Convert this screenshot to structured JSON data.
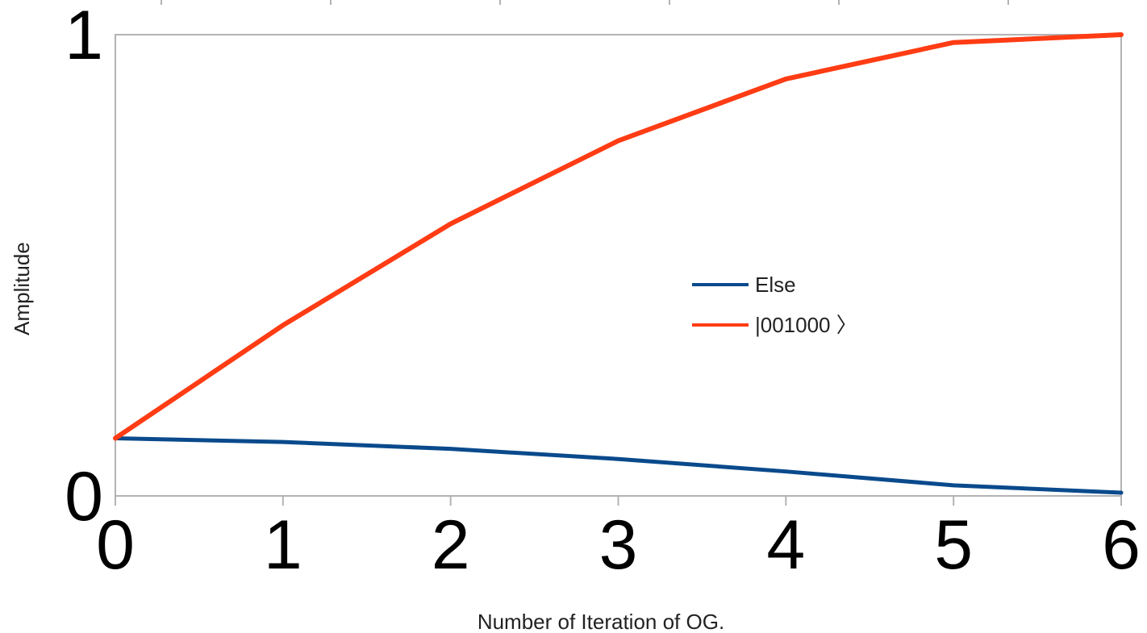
{
  "chart_data": {
    "type": "line",
    "x": [
      0,
      1,
      2,
      3,
      4,
      5,
      6
    ],
    "series": [
      {
        "name": "Else",
        "color": "#0a4a8c",
        "values": [
          0.125,
          0.117,
          0.102,
          0.08,
          0.053,
          0.023,
          0.007
        ]
      },
      {
        "name": "|001000 〉",
        "color": "#ff3c14",
        "values": [
          0.125,
          0.37,
          0.59,
          0.77,
          0.904,
          0.983,
          1.0
        ]
      }
    ],
    "xlabel": "Number of Iteration of OG.",
    "ylabel": "Amplitude",
    "x_ticks": [
      "0",
      "1",
      "2",
      "3",
      "4",
      "5",
      "6"
    ],
    "y_ticks": [
      "0",
      "1"
    ],
    "xlim": [
      0,
      6
    ],
    "ylim": [
      0,
      1
    ],
    "grid": false,
    "legend_position": "center-right",
    "frame_color": "#b3b3b3"
  }
}
